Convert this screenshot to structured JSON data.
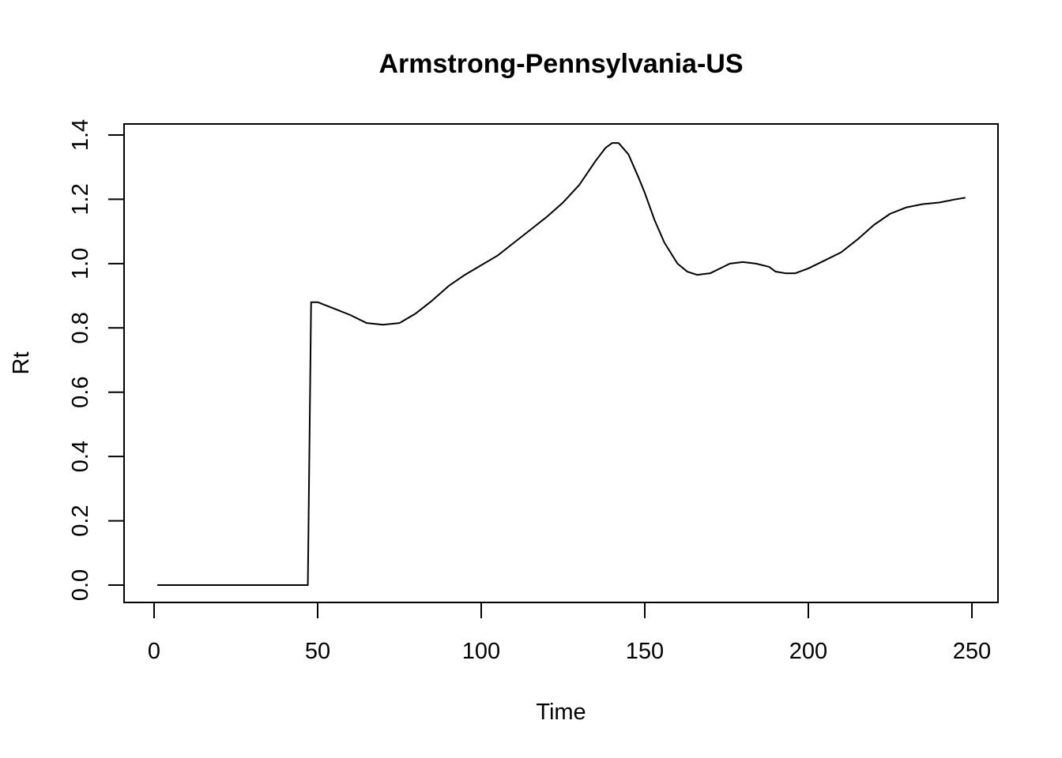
{
  "chart_data": {
    "type": "line",
    "title": "Armstrong-Pennsylvania-US",
    "xlabel": "Time",
    "ylabel": "Rt",
    "xlim": [
      1,
      250
    ],
    "ylim": [
      0,
      1.4
    ],
    "x_ticks": [
      0,
      50,
      100,
      150,
      200,
      250
    ],
    "y_ticks": [
      0.0,
      0.2,
      0.4,
      0.6,
      0.8,
      1.0,
      1.2,
      1.4
    ],
    "x_tick_labels": [
      "0",
      "50",
      "100",
      "150",
      "200",
      "250"
    ],
    "y_tick_labels": [
      "0.0",
      "0.2",
      "0.4",
      "0.6",
      "0.8",
      "1.0",
      "1.2",
      "1.4"
    ],
    "grid": false,
    "series": [
      {
        "x": [
          1,
          10,
          20,
          30,
          40,
          47,
          48,
          50,
          55,
          60,
          65,
          70,
          75,
          80,
          85,
          90,
          95,
          100,
          105,
          110,
          115,
          120,
          125,
          130,
          135,
          138,
          140,
          142,
          145,
          148,
          150,
          153,
          156,
          160,
          163,
          166,
          170,
          173,
          176,
          180,
          184,
          188,
          190,
          193,
          196,
          200,
          205,
          210,
          215,
          220,
          225,
          230,
          235,
          240,
          245,
          248
        ],
        "y": [
          0.0,
          0.0,
          0.0,
          0.0,
          0.0,
          0.0,
          0.88,
          0.88,
          0.86,
          0.84,
          0.815,
          0.81,
          0.815,
          0.845,
          0.885,
          0.93,
          0.965,
          0.995,
          1.025,
          1.065,
          1.105,
          1.145,
          1.19,
          1.245,
          1.32,
          1.36,
          1.375,
          1.375,
          1.34,
          1.27,
          1.22,
          1.135,
          1.065,
          1.0,
          0.975,
          0.965,
          0.97,
          0.985,
          1.0,
          1.005,
          1.0,
          0.99,
          0.975,
          0.97,
          0.97,
          0.985,
          1.01,
          1.035,
          1.075,
          1.12,
          1.155,
          1.175,
          1.185,
          1.19,
          1.2,
          1.205
        ]
      }
    ]
  }
}
